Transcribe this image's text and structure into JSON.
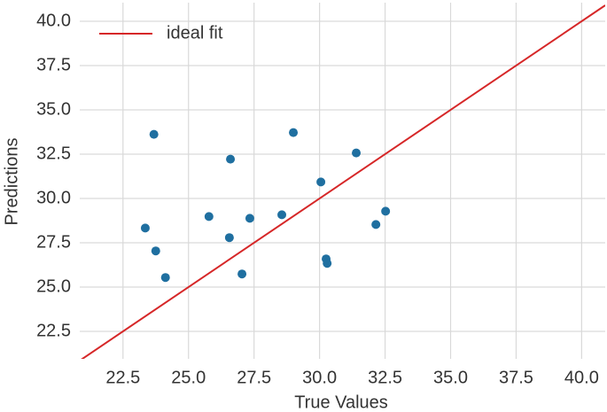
{
  "chart_data": {
    "type": "scatter",
    "x_label": "True Values",
    "y_label": "Predictions",
    "xlim": [
      20.85,
      40.9
    ],
    "ylim": [
      20.95,
      41.05
    ],
    "xticks": [
      22.5,
      {
        "value": 25,
        "label": "25.0"
      },
      27.5,
      {
        "value": 30,
        "label": "30.0"
      },
      32.5,
      {
        "value": 35,
        "label": "35.0"
      },
      37.5,
      {
        "value": 40,
        "label": "40.0"
      }
    ],
    "yticks": [
      22.5,
      {
        "value": 25,
        "label": "25.0"
      },
      27.5,
      {
        "value": 30,
        "label": "30.0"
      },
      32.5,
      {
        "value": 35,
        "label": "35.0"
      },
      37.5,
      {
        "value": 40,
        "label": "40.0"
      }
    ],
    "grid": true,
    "points": {
      "color": "#1f6fa0",
      "x": [
        23.68,
        23.35,
        23.75,
        24.12,
        25.78,
        26.6,
        26.56,
        27.34,
        27.04,
        28.56,
        29.0,
        30.05,
        30.25,
        30.29,
        31.4,
        32.15,
        32.52
      ],
      "y": [
        33.62,
        28.33,
        27.04,
        25.54,
        28.98,
        32.22,
        27.79,
        28.88,
        25.74,
        29.08,
        33.72,
        30.93,
        26.59,
        26.34,
        32.57,
        28.53,
        29.28
      ]
    },
    "fit_line": {
      "name": "ideal fit",
      "color": "#d62728",
      "x": [
        20.85,
        40.9
      ],
      "y": [
        20.85,
        40.9
      ]
    },
    "legend": "upper left"
  }
}
